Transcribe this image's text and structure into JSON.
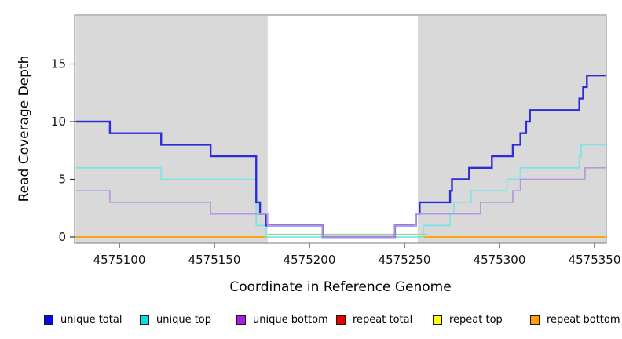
{
  "chart_data": {
    "type": "step-line",
    "title": "",
    "xlabel": "Coordinate in Reference Genome",
    "ylabel": "Read Coverage Depth",
    "xlim": [
      4575077,
      4575356
    ],
    "ylim": [
      0,
      19.2
    ],
    "x_ticks": [
      4575100,
      4575150,
      4575200,
      4575250,
      4575300,
      4575350
    ],
    "x_tick_labels": [
      "4575100",
      "4575150",
      "4575200",
      "4575250",
      "4575300",
      "4575350"
    ],
    "y_ticks": [
      0,
      5,
      10,
      15
    ],
    "y_tick_labels": [
      "0",
      "5",
      "10",
      "15"
    ],
    "grid": false,
    "legend_position": "bottom",
    "shade_color": "#d9d9d9",
    "panel_border_color": "#8f8f8f",
    "shaded_regions": [
      [
        4575077,
        4575178
      ],
      [
        4575257,
        4575356
      ]
    ],
    "gap_line": {
      "color": "#93dc85",
      "value": 0.22,
      "x": [
        4575178,
        4575262
      ]
    },
    "series": [
      {
        "name": "unique total",
        "line_color": "#2d2dd8",
        "swatch_color": "#0808e8",
        "width": 2.4,
        "steps": [
          [
            4575077,
            10
          ],
          [
            4575095,
            9
          ],
          [
            4575122,
            8
          ],
          [
            4575148,
            7
          ],
          [
            4575172,
            3
          ],
          [
            4575174,
            2
          ],
          [
            4575177,
            1
          ],
          [
            4575207,
            0
          ],
          [
            4575245,
            1
          ],
          [
            4575256,
            2
          ],
          [
            4575258,
            3
          ],
          [
            4575274,
            4
          ],
          [
            4575275,
            5
          ],
          [
            4575284,
            6
          ],
          [
            4575296,
            7
          ],
          [
            4575307,
            8
          ],
          [
            4575311,
            9
          ],
          [
            4575314,
            10
          ],
          [
            4575316,
            11
          ],
          [
            4575342,
            12
          ],
          [
            4575344,
            13
          ],
          [
            4575346,
            14
          ]
        ],
        "end_x": 4575356
      },
      {
        "name": "unique top",
        "line_color": "#7fe4e7",
        "swatch_color": "#00e2e2",
        "width": 1.8,
        "steps": [
          [
            4575077,
            6
          ],
          [
            4575122,
            5
          ],
          [
            4575172,
            1
          ],
          [
            4575177,
            0
          ],
          [
            4575260,
            1
          ],
          [
            4575274,
            2
          ],
          [
            4575276,
            3
          ],
          [
            4575285,
            4
          ],
          [
            4575304,
            5
          ],
          [
            4575311,
            6
          ],
          [
            4575342,
            7
          ],
          [
            4575343,
            8
          ]
        ],
        "end_x": 4575356
      },
      {
        "name": "unique bottom",
        "line_color": "#b897de",
        "swatch_color": "#a61fe0",
        "width": 1.7,
        "steps": [
          [
            4575077,
            4
          ],
          [
            4575095,
            3
          ],
          [
            4575148,
            2
          ],
          [
            4575178,
            1
          ],
          [
            4575207,
            0
          ],
          [
            4575245,
            1
          ],
          [
            4575256,
            2
          ],
          [
            4575290,
            3
          ],
          [
            4575307,
            4
          ],
          [
            4575311,
            5
          ],
          [
            4575345,
            6
          ]
        ],
        "end_x": 4575356
      },
      {
        "name": "repeat total",
        "line_color": "#e00000",
        "swatch_color": "#e60000",
        "width": 1.7,
        "segments": [
          {
            "x0": 4575077,
            "x1": 4575178,
            "y": 0
          },
          {
            "x0": 4575257,
            "x1": 4575356,
            "y": 0
          }
        ]
      },
      {
        "name": "repeat top",
        "line_color": "#f5f500",
        "swatch_color": "#fdfd00",
        "width": 1.7,
        "segments": [
          {
            "x0": 4575077,
            "x1": 4575178,
            "y": 0
          },
          {
            "x0": 4575257,
            "x1": 4575356,
            "y": 0
          }
        ]
      },
      {
        "name": "repeat bottom",
        "line_color": "#ff9f14",
        "swatch_color": "#ffa200",
        "width": 1.8,
        "segments": [
          {
            "x0": 4575077,
            "x1": 4575178,
            "y": 0
          },
          {
            "x0": 4575257,
            "x1": 4575356,
            "y": 0
          }
        ]
      }
    ]
  }
}
